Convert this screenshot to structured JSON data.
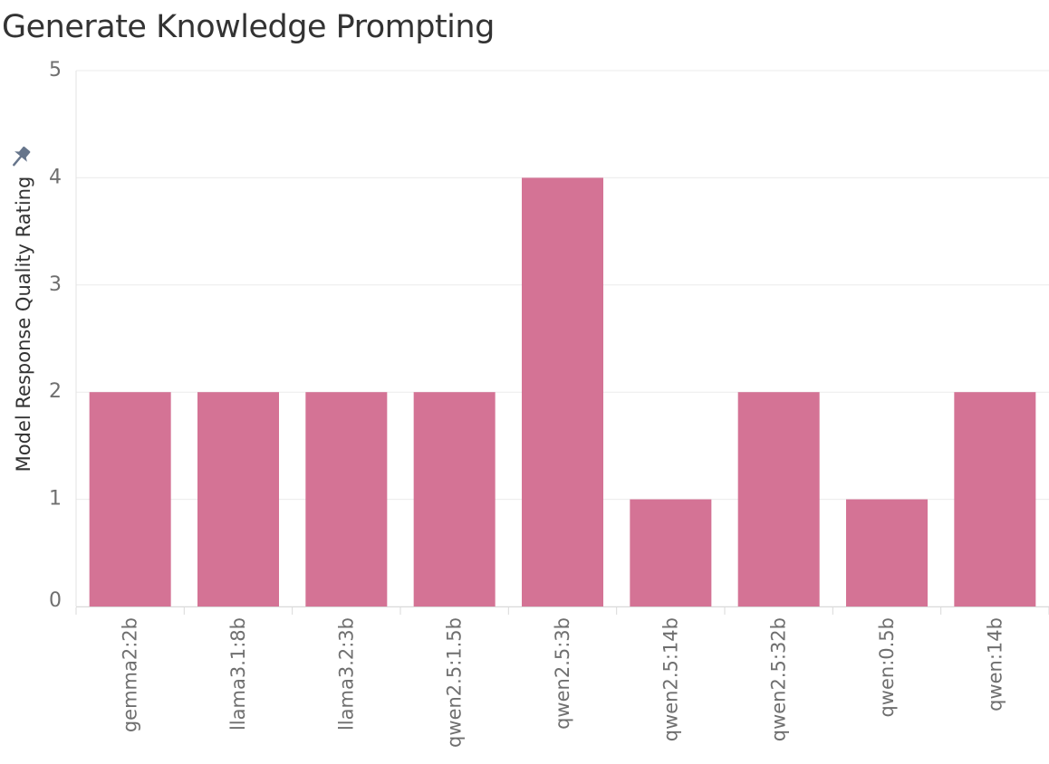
{
  "chart_data": {
    "type": "bar",
    "title": "Generate Knowledge Prompting",
    "xlabel": "",
    "ylabel": "Model Response Quality Rating",
    "categories": [
      "gemma2:2b",
      "llama3.1:8b",
      "llama3.2:3b",
      "qwen2.5:1.5b",
      "qwen2.5:3b",
      "qwen2.5:14b",
      "qwen2.5:32b",
      "qwen:0.5b",
      "qwen:14b"
    ],
    "values": [
      2,
      2,
      2,
      2,
      4,
      1,
      2,
      1,
      2
    ],
    "ylim": [
      0,
      5
    ],
    "yticks": [
      0,
      1,
      2,
      3,
      4,
      5
    ],
    "grid": true,
    "legend": "none",
    "bar_color": "#d47395"
  },
  "icons": {
    "ylabel_pin": "pin-icon"
  }
}
